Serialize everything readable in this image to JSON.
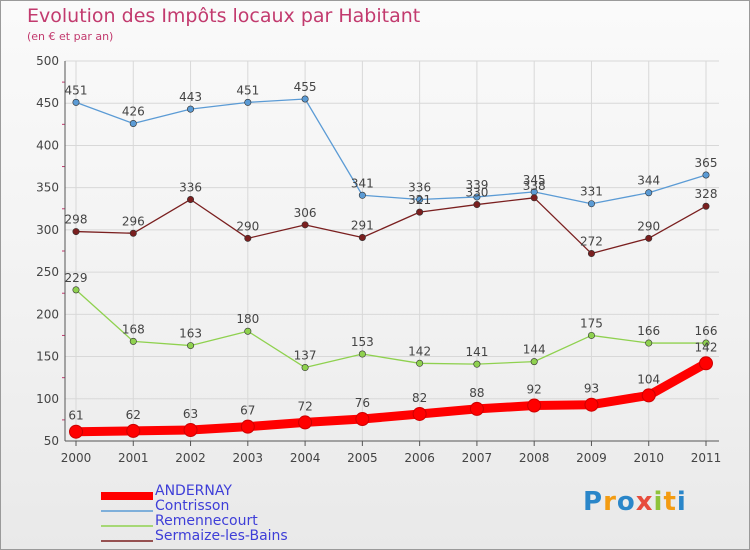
{
  "header": {
    "title": "Evolution des Impôts locaux par Habitant",
    "subtitle": "(en € et par an)"
  },
  "logo": {
    "text": "Proxiti",
    "letters": [
      "P",
      "r",
      "o",
      "x",
      "i",
      "t",
      "i"
    ]
  },
  "colors": {
    "title": "#c23a6e",
    "grid": "#d8d8d8",
    "axis": "#555555",
    "tick_marker": "#c23a6e",
    "label": "#444444",
    "legend_text": "#3e3ed8"
  },
  "chart_data": {
    "type": "line",
    "title": "Evolution des Impôts locaux par Habitant",
    "subtitle": "(en € et par an)",
    "xlabel": "",
    "ylabel": "",
    "ylim": [
      50,
      500
    ],
    "yticks": [
      50,
      100,
      150,
      200,
      250,
      300,
      350,
      400,
      450,
      500
    ],
    "grid": true,
    "legend": "bottom-left",
    "x": [
      "2000",
      "2001",
      "2002",
      "2003",
      "2004",
      "2005",
      "2006",
      "2007",
      "2008",
      "2009",
      "2010",
      "2011"
    ],
    "series": [
      {
        "name": "ANDERNAY",
        "color": "#ff0000",
        "values": [
          61,
          62,
          63,
          67,
          72,
          76,
          82,
          88,
          92,
          93,
          104,
          142
        ]
      },
      {
        "name": "Contrisson",
        "color": "#5b9bd5",
        "values": [
          451,
          426,
          443,
          451,
          455,
          341,
          336,
          339,
          345,
          331,
          344,
          365
        ]
      },
      {
        "name": "Remennecourt",
        "color": "#8fd14f",
        "values": [
          229,
          168,
          163,
          180,
          137,
          153,
          142,
          141,
          144,
          175,
          166,
          166
        ]
      },
      {
        "name": "Sermaize-les-Bains",
        "color": "#7a1f1f",
        "values": [
          298,
          296,
          336,
          290,
          306,
          291,
          321,
          330,
          338,
          272,
          290,
          328
        ]
      }
    ]
  }
}
